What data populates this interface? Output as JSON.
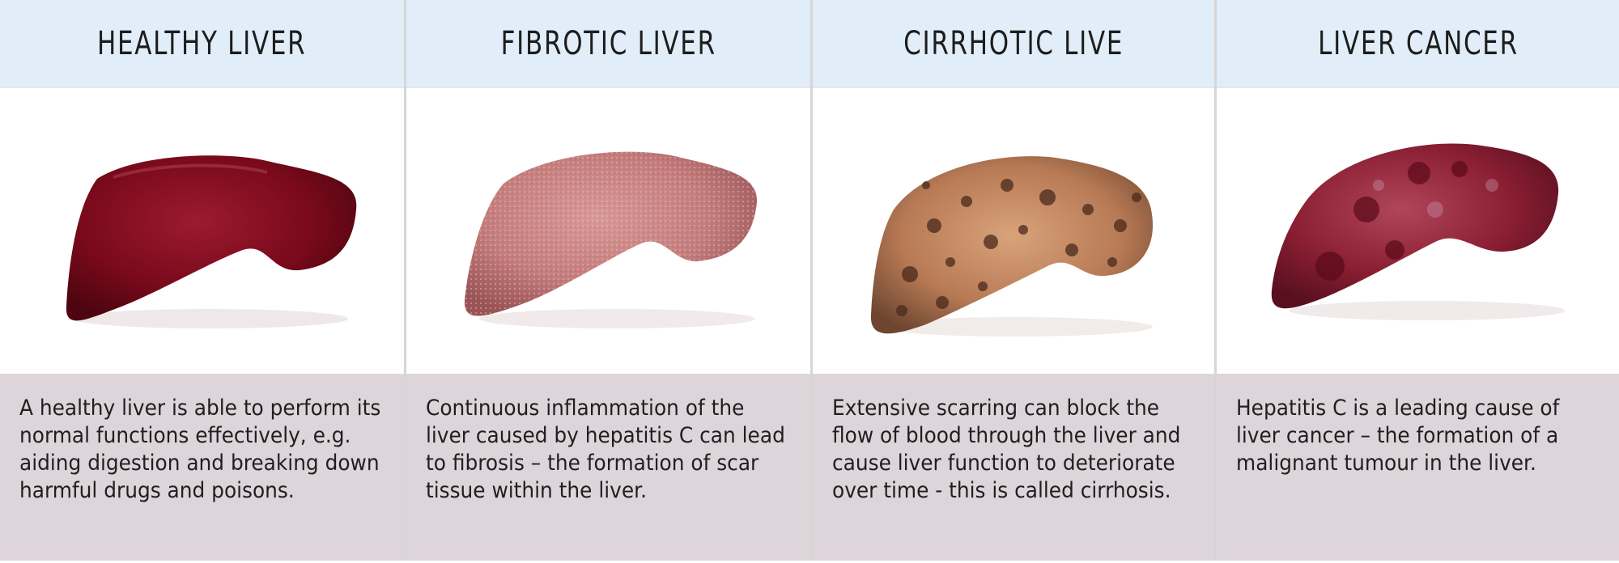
{
  "panels": [
    {
      "title": "HEALTHY LIVER",
      "image_label": "healthy-liver",
      "description": "A healthy liver is able to perform its normal functions effectively, e.g. aiding digestion and breaking down harmful drugs and poisons.",
      "color": "#7a0a1c"
    },
    {
      "title": "FIBROTIC LIVER",
      "image_label": "fibrotic-liver",
      "description": "Continuous inflammation of the liver caused by hepatitis C can lead to fibrosis – the formation of scar tissue within the liver.",
      "color": "#c98283"
    },
    {
      "title": "CIRRHOTIC LIVE",
      "image_label": "cirrhotic-liver",
      "description": "Extensive scarring can block the flow of blood through the liver and cause liver function to deteriorate over time - this is called cirrhosis.",
      "color": "#b77a55"
    },
    {
      "title": "LIVER CANCER",
      "image_label": "liver-cancer",
      "description": "Hepatitis C is a leading cause of liver cancer – the formation of a malignant tumour in the liver.",
      "color": "#8a1e32"
    }
  ],
  "colors": {
    "header_bg": "#e1edf8",
    "description_bg": "#ded5da",
    "divider": "#d6d6d6"
  }
}
